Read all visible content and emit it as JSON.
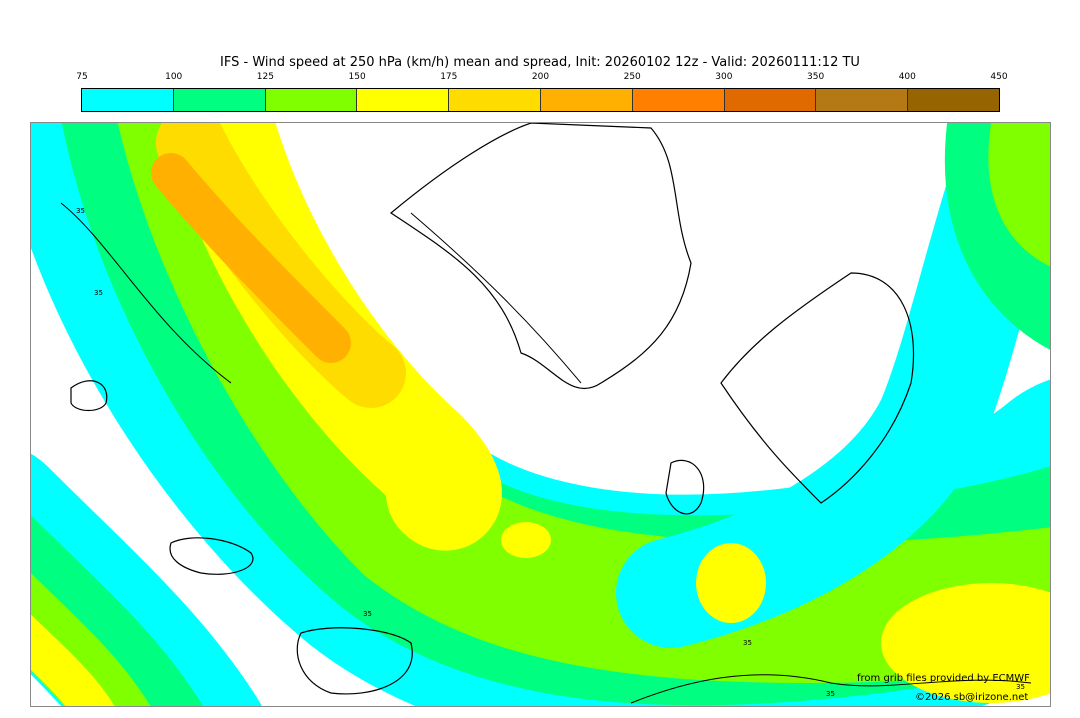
{
  "title": "IFS - Wind speed at 250 hPa (km/h) mean and spread, Init: 20260102 12z - Valid: 20260111:12 TU",
  "colorbar": {
    "ticks": [
      "75",
      "100",
      "125",
      "150",
      "175",
      "200",
      "250",
      "300",
      "350",
      "400",
      "450"
    ],
    "colors": [
      "#00ffff",
      "#00ff80",
      "#80ff00",
      "#ffff00",
      "#ffdc00",
      "#ffb000",
      "#ff8000",
      "#e06a00",
      "#b47814",
      "#966400"
    ]
  },
  "contour_labels": [
    "35",
    "35",
    "35",
    "35",
    "35",
    "35"
  ],
  "credits": {
    "source": "from grib files provided by ECMWF",
    "copyright": "©2026 sb@irizone.net"
  }
}
